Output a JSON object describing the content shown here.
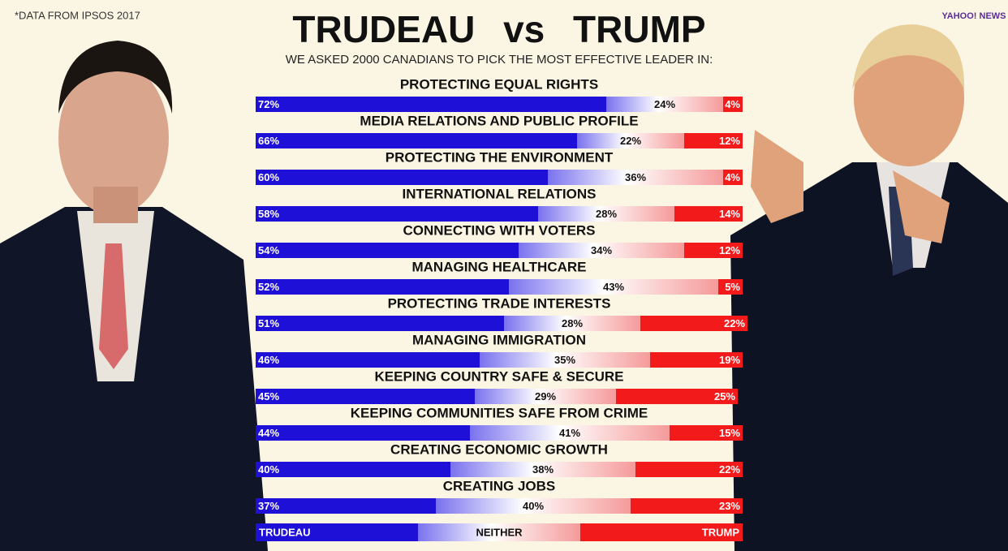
{
  "chart_data": {
    "type": "stacked_bar_horizontal",
    "note": "*DATA FROM IPSOS 2017",
    "source_logo": "YAHOO! NEWS",
    "title": "TRUDEAU vs TRUMP",
    "subtitle": "WE ASKED 2000 CANADIANS TO PICK THE MOST EFFECTIVE LEADER IN:",
    "categories": [
      "PROTECTING EQUAL RIGHTS",
      "MEDIA RELATIONS AND PUBLIC PROFILE",
      "PROTECTING THE ENVIRONMENT",
      "INTERNATIONAL RELATIONS",
      "CONNECTING WITH VOTERS",
      "MANAGING HEALTHCARE",
      "PROTECTING TRADE INTERESTS",
      "MANAGING IMMIGRATION",
      "KEEPING COUNTRY SAFE & SECURE",
      "KEEPING COMMUNITIES SAFE FROM CRIME",
      "CREATING ECONOMIC GROWTH",
      "CREATING JOBS"
    ],
    "series": [
      {
        "name": "TRUDEAU",
        "color": "#1f10d8",
        "values": [
          72,
          66,
          60,
          58,
          54,
          52,
          51,
          46,
          45,
          44,
          40,
          37
        ],
        "value_labels": [
          "72%",
          "66%",
          "60%",
          "58%",
          "54%",
          "52%",
          "51%",
          "46%",
          "45%",
          "44%",
          "40%",
          "37%"
        ]
      },
      {
        "name": "NEITHER",
        "color": "#ffffff",
        "values": [
          24,
          22,
          36,
          28,
          34,
          43,
          28,
          35,
          29,
          41,
          38,
          40
        ],
        "value_labels": [
          "24%",
          "22%",
          "36%",
          "28%",
          "34%",
          "43%",
          "28%",
          "35%",
          "29%",
          "41%",
          "38%",
          "40%"
        ]
      },
      {
        "name": "TRUMP",
        "color": "#f21a1a",
        "values": [
          4,
          12,
          4,
          14,
          12,
          5,
          22,
          19,
          25,
          15,
          22,
          23
        ],
        "value_labels": [
          "4%",
          "12%",
          "4%",
          "14%",
          "12%",
          "5%",
          "22%",
          "19%",
          "25%",
          "15%",
          "22%",
          "23%"
        ]
      }
    ],
    "xlim": [
      0,
      100
    ]
  }
}
